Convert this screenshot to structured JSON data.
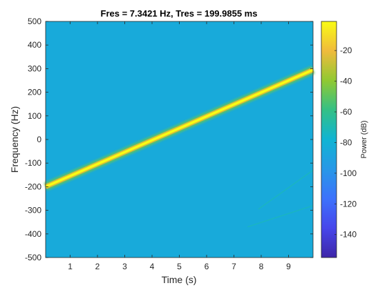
{
  "chart_data": {
    "type": "heatmap",
    "title": "Fres = 7.3421 Hz, Tres = 199.9855 ms",
    "xlabel": "Time (s)",
    "ylabel": "Frequency (Hz)",
    "xlim": [
      0.1,
      9.9
    ],
    "ylim": [
      -500,
      500
    ],
    "x_ticks": [
      "1",
      "2",
      "3",
      "4",
      "5",
      "6",
      "7",
      "8",
      "9"
    ],
    "x_tick_values": [
      1,
      2,
      3,
      4,
      5,
      6,
      7,
      8,
      9
    ],
    "y_ticks": [
      "500",
      "400",
      "300",
      "200",
      "100",
      "0",
      "-100",
      "-200",
      "-300",
      "-400",
      "-500"
    ],
    "y_tick_values": [
      500,
      400,
      300,
      200,
      100,
      0,
      -100,
      -200,
      -300,
      -400,
      -500
    ],
    "background_power_db": -85,
    "features": [
      {
        "kind": "linear chirp",
        "t": [
          0.1,
          9.9
        ],
        "freq": [
          -200,
          295
        ],
        "power_db": 0
      },
      {
        "kind": "faint trace",
        "t": [
          7.9,
          9.9
        ],
        "freq": [
          -295,
          -130
        ],
        "power_db": -90
      },
      {
        "kind": "faint trace",
        "t": [
          7.5,
          9.9
        ],
        "freq": [
          -370,
          -280
        ],
        "power_db": -90
      }
    ],
    "colorbar": {
      "label": "Power (dB)",
      "ticks": [
        "-20",
        "-40",
        "-60",
        "-80",
        "-100",
        "-120",
        "-140"
      ],
      "tick_values": [
        -20,
        -40,
        -60,
        -80,
        -100,
        -120,
        -140
      ],
      "range": [
        -155,
        -1
      ],
      "colormap": "parula"
    }
  }
}
